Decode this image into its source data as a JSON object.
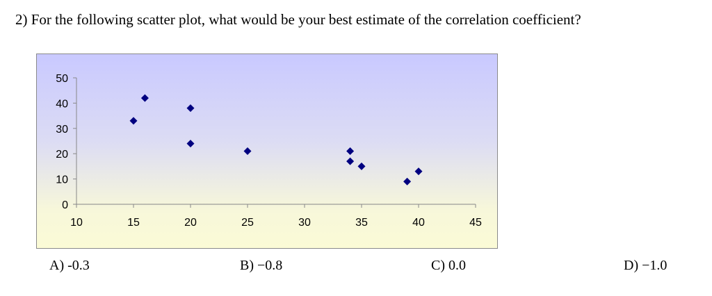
{
  "question": "2) For the following scatter plot, what would be your best estimate of the correlation coefficient?",
  "choices": [
    {
      "label": "A) -0.3"
    },
    {
      "label": "B) −0.8"
    },
    {
      "label": "C) 0.0"
    },
    {
      "label": "D) −1.0"
    }
  ],
  "chart_data": {
    "type": "scatter",
    "title": "",
    "xlabel": "",
    "ylabel": "",
    "xlim": [
      10,
      45
    ],
    "ylim": [
      0,
      50
    ],
    "xticks": [
      10,
      15,
      20,
      25,
      30,
      35,
      40,
      45
    ],
    "yticks": [
      0,
      10,
      20,
      30,
      40,
      50
    ],
    "grid": false,
    "legend": "none",
    "marker": "diamond",
    "colors": {
      "marker": "#000080",
      "background_top": "#c9c9ff",
      "background_bottom": "#fbfbd6"
    },
    "series": [
      {
        "points": [
          {
            "x": 15,
            "y": 33
          },
          {
            "x": 16,
            "y": 42
          },
          {
            "x": 20,
            "y": 38
          },
          {
            "x": 20,
            "y": 24
          },
          {
            "x": 25,
            "y": 21
          },
          {
            "x": 34,
            "y": 21
          },
          {
            "x": 34,
            "y": 17
          },
          {
            "x": 35,
            "y": 15
          },
          {
            "x": 39,
            "y": 9
          },
          {
            "x": 40,
            "y": 13
          }
        ]
      }
    ]
  }
}
